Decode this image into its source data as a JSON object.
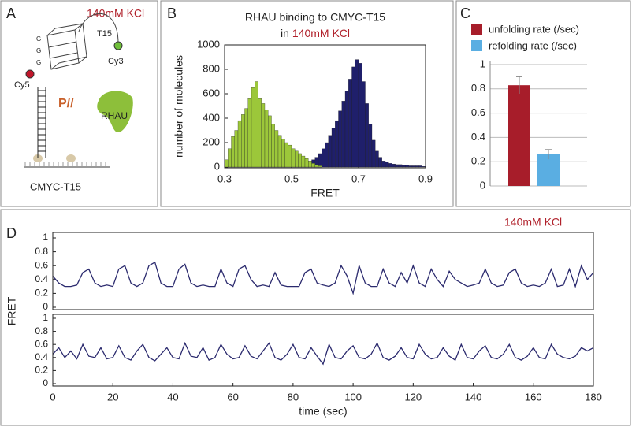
{
  "panel_a": {
    "label": "A",
    "condition": "140mM KCl",
    "loop": "T15",
    "donor": "Cy3",
    "acceptor": "Cy5",
    "protein": "RHAU",
    "symbol": "P//",
    "construct": "CMYC-T15",
    "g_labels": [
      "G",
      "G",
      "G"
    ]
  },
  "chart_data": [
    {
      "type": "histogram",
      "panel": "B",
      "title": "RHAU binding to CMYC-T15",
      "subtitle": "in",
      "subtitle_highlight": "140mM KCl",
      "xlabel": "FRET",
      "ylabel": "number of molecules",
      "bins": [
        0.3,
        0.31,
        0.32,
        0.33,
        0.34,
        0.35,
        0.36,
        0.37,
        0.38,
        0.39,
        0.4,
        0.41,
        0.42,
        0.43,
        0.44,
        0.45,
        0.46,
        0.47,
        0.48,
        0.49,
        0.5,
        0.51,
        0.52,
        0.53,
        0.54,
        0.55,
        0.56,
        0.57,
        0.58,
        0.59,
        0.6,
        0.61,
        0.62,
        0.63,
        0.64,
        0.65,
        0.66,
        0.67,
        0.68,
        0.69,
        0.7,
        0.71,
        0.72,
        0.73,
        0.74,
        0.75,
        0.76,
        0.77,
        0.78,
        0.79,
        0.8,
        0.81,
        0.82,
        0.83,
        0.84,
        0.85,
        0.86,
        0.87,
        0.88,
        0.89,
        0.9
      ],
      "series": [
        {
          "color": "#1f1f6b",
          "values": [
            10,
            15,
            20,
            20,
            20,
            20,
            20,
            20,
            20,
            20,
            20,
            20,
            20,
            20,
            20,
            20,
            20,
            20,
            20,
            25,
            25,
            30,
            30,
            35,
            35,
            40,
            60,
            80,
            110,
            150,
            200,
            260,
            320,
            380,
            460,
            540,
            620,
            720,
            820,
            880,
            850,
            700,
            520,
            350,
            220,
            130,
            80,
            50,
            40,
            30,
            25,
            20,
            20,
            15,
            15,
            10,
            10,
            10,
            10,
            5
          ]
        },
        {
          "color": "#9cc73a",
          "values": [
            60,
            150,
            250,
            300,
            380,
            430,
            480,
            560,
            650,
            700,
            560,
            520,
            470,
            420,
            350,
            300,
            260,
            230,
            200,
            180,
            150,
            130,
            110,
            90,
            70,
            50,
            30,
            20,
            10,
            0,
            0,
            0,
            0,
            0,
            0,
            0,
            0,
            0,
            0,
            0,
            0,
            0,
            0,
            0,
            0,
            0,
            0,
            0,
            0,
            0,
            0,
            0,
            0,
            0,
            0,
            0,
            0,
            0,
            0,
            0
          ]
        }
      ],
      "xlim": [
        0.3,
        0.9
      ],
      "xticks": [
        0.3,
        0.5,
        0.7,
        0.9
      ],
      "ylim": [
        0,
        1000
      ],
      "yticks": [
        0,
        200,
        400,
        600,
        800,
        1000
      ]
    },
    {
      "type": "bar",
      "panel": "C",
      "categories": [
        null
      ],
      "legend": "top",
      "series": [
        {
          "name": "unfolding rate (/sec)",
          "color": "#a71d2a",
          "values": [
            0.83
          ],
          "errors": [
            0.07
          ]
        },
        {
          "name": "refolding rate (/sec)",
          "color": "#5aaee2",
          "values": [
            0.26
          ],
          "errors": [
            0.04
          ]
        }
      ],
      "ylim": [
        0,
        1
      ],
      "yticks": [
        0,
        0.2,
        0.4,
        0.6,
        0.8,
        1
      ],
      "grid": true
    },
    {
      "type": "line",
      "panel": "D",
      "ylabel": "FRET",
      "annotation": "140mM KCl",
      "x": [
        0,
        2,
        4,
        6,
        8,
        10,
        12,
        14,
        16,
        18,
        20,
        22,
        24,
        26,
        28,
        30,
        32,
        34,
        36,
        38,
        40,
        42,
        44,
        46,
        48,
        50,
        52,
        54,
        56,
        58,
        60,
        62,
        64,
        66,
        68,
        70,
        72,
        74,
        76,
        78,
        80,
        82,
        84,
        86,
        88,
        90,
        92,
        94,
        96,
        98,
        100,
        102,
        104,
        106,
        108,
        110,
        112,
        114,
        116,
        118,
        120,
        122,
        124,
        126,
        128,
        130,
        132,
        134,
        136,
        138,
        140,
        142,
        144,
        146,
        148,
        150,
        152,
        154,
        156,
        158,
        160,
        162,
        164,
        166,
        168,
        170,
        172,
        174,
        176,
        178,
        180
      ],
      "series": [
        {
          "color": "#2b2a6e",
          "values": [
            0.45,
            0.35,
            0.3,
            0.3,
            0.32,
            0.5,
            0.55,
            0.35,
            0.3,
            0.32,
            0.3,
            0.55,
            0.6,
            0.35,
            0.3,
            0.35,
            0.6,
            0.65,
            0.35,
            0.3,
            0.3,
            0.55,
            0.62,
            0.35,
            0.3,
            0.32,
            0.3,
            0.3,
            0.55,
            0.35,
            0.3,
            0.55,
            0.6,
            0.4,
            0.3,
            0.32,
            0.3,
            0.5,
            0.32,
            0.3,
            0.3,
            0.3,
            0.5,
            0.55,
            0.35,
            0.32,
            0.3,
            0.35,
            0.6,
            0.45,
            0.2,
            0.6,
            0.35,
            0.3,
            0.3,
            0.55,
            0.35,
            0.3,
            0.5,
            0.35,
            0.6,
            0.35,
            0.3,
            0.55,
            0.4,
            0.3,
            0.52,
            0.4,
            0.35,
            0.3,
            0.32,
            0.35,
            0.55,
            0.35,
            0.3,
            0.32,
            0.5,
            0.55,
            0.35,
            0.3,
            0.32,
            0.3,
            0.35,
            0.55,
            0.3,
            0.32,
            0.55,
            0.3,
            0.6,
            0.4,
            0.5
          ]
        }
      ],
      "xlim": [
        0,
        180
      ],
      "ylim": [
        0,
        1
      ],
      "yticks": [
        0,
        0.2,
        0.4,
        0.6,
        0.8,
        1
      ]
    },
    {
      "type": "line",
      "xlabel": "time (sec)",
      "x": [
        0,
        2,
        4,
        6,
        8,
        10,
        12,
        14,
        16,
        18,
        20,
        22,
        24,
        26,
        28,
        30,
        32,
        34,
        36,
        38,
        40,
        42,
        44,
        46,
        48,
        50,
        52,
        54,
        56,
        58,
        60,
        62,
        64,
        66,
        68,
        70,
        72,
        74,
        76,
        78,
        80,
        82,
        84,
        86,
        88,
        90,
        92,
        94,
        96,
        98,
        100,
        102,
        104,
        106,
        108,
        110,
        112,
        114,
        116,
        118,
        120,
        122,
        124,
        126,
        128,
        130,
        132,
        134,
        136,
        138,
        140,
        142,
        144,
        146,
        148,
        150,
        152,
        154,
        156,
        158,
        160,
        162,
        164,
        166,
        168,
        170,
        172,
        174,
        176,
        178,
        180
      ],
      "series": [
        {
          "color": "#2b2a6e",
          "values": [
            0.45,
            0.55,
            0.4,
            0.5,
            0.38,
            0.6,
            0.42,
            0.4,
            0.55,
            0.38,
            0.4,
            0.58,
            0.4,
            0.36,
            0.5,
            0.6,
            0.4,
            0.35,
            0.45,
            0.55,
            0.4,
            0.38,
            0.62,
            0.42,
            0.4,
            0.55,
            0.36,
            0.4,
            0.6,
            0.45,
            0.38,
            0.4,
            0.58,
            0.42,
            0.38,
            0.5,
            0.62,
            0.4,
            0.36,
            0.45,
            0.6,
            0.4,
            0.38,
            0.55,
            0.42,
            0.3,
            0.6,
            0.4,
            0.38,
            0.5,
            0.58,
            0.4,
            0.38,
            0.45,
            0.62,
            0.4,
            0.36,
            0.42,
            0.55,
            0.4,
            0.38,
            0.6,
            0.45,
            0.38,
            0.4,
            0.55,
            0.42,
            0.36,
            0.6,
            0.4,
            0.38,
            0.5,
            0.58,
            0.4,
            0.38,
            0.45,
            0.6,
            0.4,
            0.36,
            0.42,
            0.55,
            0.4,
            0.38,
            0.6,
            0.45,
            0.4,
            0.38,
            0.42,
            0.55,
            0.5,
            0.55
          ]
        }
      ],
      "xlim": [
        0,
        180
      ],
      "xticks": [
        0,
        20,
        40,
        60,
        80,
        100,
        120,
        140,
        160,
        180
      ],
      "ylim": [
        0,
        1
      ],
      "yticks": [
        0,
        0.2,
        0.4,
        0.6,
        0.8,
        1
      ]
    }
  ]
}
